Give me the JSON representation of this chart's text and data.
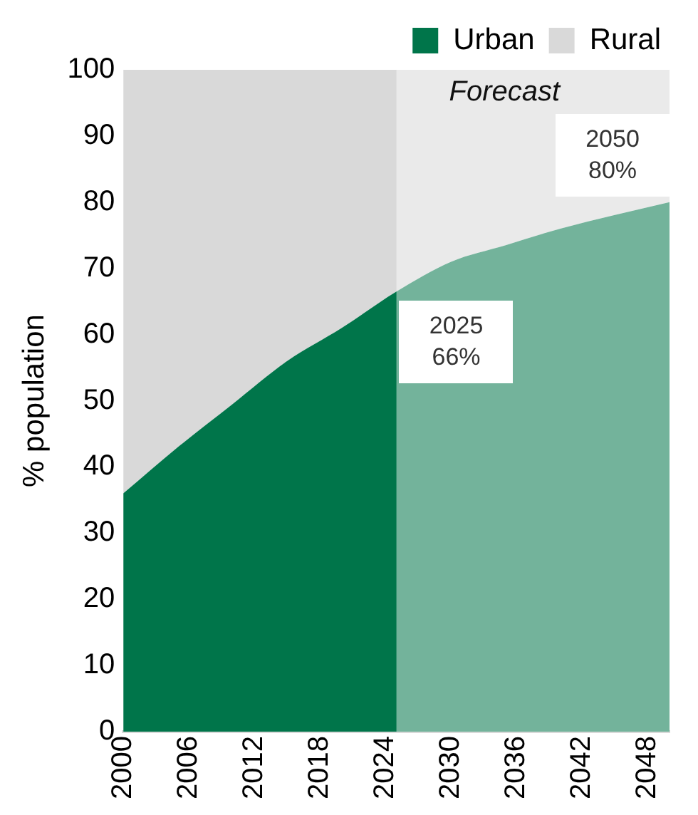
{
  "chart_data": {
    "type": "area",
    "ylabel": "% population",
    "stacked": true,
    "x": [
      2000,
      2005,
      2010,
      2015,
      2020,
      2025,
      2030,
      2035,
      2040,
      2050
    ],
    "series": [
      {
        "name": "Urban",
        "color": "#00754a",
        "values": [
          36,
          43,
          49.5,
          56,
          61,
          66.5,
          71,
          73.5,
          76,
          80
        ]
      },
      {
        "name": "Rural",
        "color": "#d9d9d9",
        "values": [
          64,
          57,
          50.5,
          44,
          39,
          33.5,
          29,
          26.5,
          24,
          20
        ]
      }
    ],
    "xlim": [
      2000,
      2050
    ],
    "xticks": [
      2000,
      2006,
      2012,
      2018,
      2024,
      2030,
      2036,
      2042,
      2048
    ],
    "ylim": [
      0,
      100
    ],
    "yticks": [
      0,
      10,
      20,
      30,
      40,
      50,
      60,
      70,
      80,
      90,
      100
    ],
    "bands": [
      {
        "axis": "x",
        "from": 2025,
        "to": 2050,
        "label": "Forecast",
        "color": "#ffffff"
      }
    ],
    "annotations": [
      {
        "text": "2025\n66%",
        "x": 2025,
        "y": 66
      },
      {
        "text": "2050\n80%",
        "x": 2050,
        "y": 80
      }
    ],
    "grid": false,
    "legend": "top",
    "marker": "none"
  }
}
